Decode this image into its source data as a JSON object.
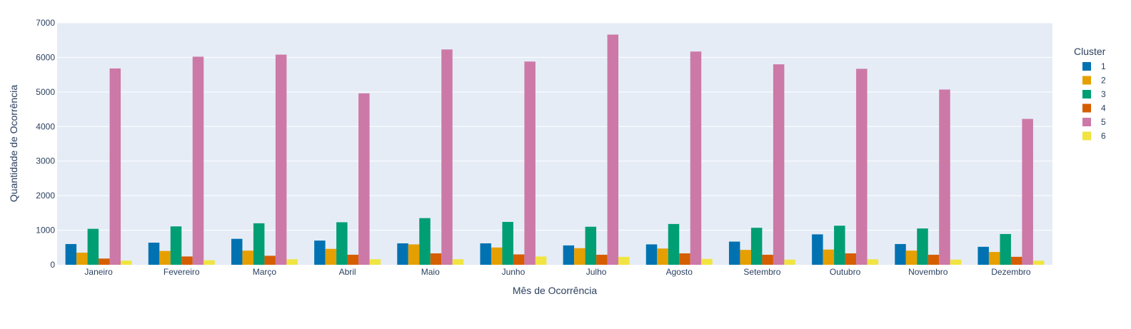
{
  "chart_data": {
    "type": "bar",
    "title": "",
    "xlabel": "Mês de Ocorrência",
    "ylabel": "Quantidade de Ocorrência",
    "ylim": [
      0,
      7000
    ],
    "yticks": [
      0,
      1000,
      2000,
      3000,
      4000,
      5000,
      6000,
      7000
    ],
    "grid": true,
    "legend": {
      "title": "Cluster",
      "position": "right"
    },
    "categories": [
      "Janeiro",
      "Fevereiro",
      "Março",
      "Abril",
      "Maio",
      "Junho",
      "Julho",
      "Agosto",
      "Setembro",
      "Outubro",
      "Novembro",
      "Dezembro"
    ],
    "series": [
      {
        "name": "1",
        "color": "#0072B2",
        "values": [
          600,
          640,
          750,
          700,
          620,
          620,
          560,
          590,
          670,
          880,
          600,
          520
        ]
      },
      {
        "name": "2",
        "color": "#E69F00",
        "values": [
          350,
          400,
          410,
          460,
          590,
          500,
          480,
          470,
          430,
          440,
          410,
          370
        ]
      },
      {
        "name": "3",
        "color": "#009E73",
        "values": [
          1040,
          1110,
          1200,
          1230,
          1350,
          1240,
          1100,
          1180,
          1070,
          1130,
          1050,
          890
        ]
      },
      {
        "name": "4",
        "color": "#D55E00",
        "values": [
          180,
          240,
          260,
          290,
          330,
          300,
          290,
          330,
          290,
          330,
          290,
          230
        ]
      },
      {
        "name": "5",
        "color": "#CC79A7",
        "values": [
          5680,
          6020,
          6080,
          4960,
          6230,
          5880,
          6660,
          6170,
          5800,
          5670,
          5070,
          4220
        ]
      },
      {
        "name": "6",
        "color": "#F0E442",
        "values": [
          120,
          130,
          160,
          160,
          160,
          240,
          230,
          170,
          150,
          160,
          150,
          120
        ]
      }
    ]
  }
}
